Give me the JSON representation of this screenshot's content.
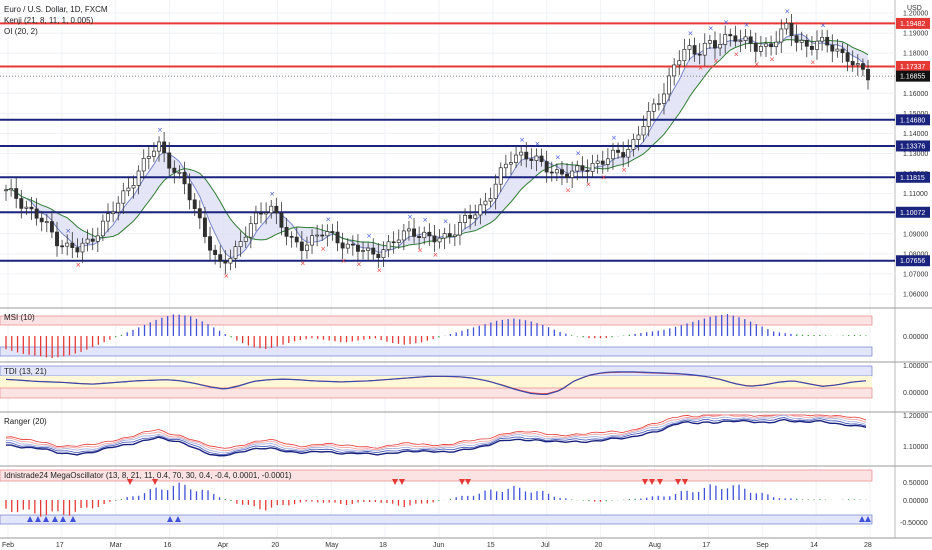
{
  "header": {
    "title": "Euro / U.S. Dollar, 1D, FXCM",
    "indicator1": "Kenji (21, 8, 11, 1, 0.005)",
    "indicator2": "OI (20, 2)",
    "currency": "USD"
  },
  "colors": {
    "bull": "#2e2e2e",
    "bear": "#2e2e2e",
    "level_red": "#e53935",
    "level_blue": "#1a237e",
    "hist_pos": "#3f51d8",
    "hist_neg": "#e53935",
    "hist_neu": "#43a047"
  },
  "panes": {
    "msi": "MSI (10)",
    "tdi": "TDI (13, 21)",
    "ranger": "Ranger (20)",
    "mega": "Idnistrade24 MegaOscillator (13, 8, 21, 11, 0.4, 70, 30, 0.4, -0.4, 0.0001, -0.0001)"
  },
  "chart_data": {
    "type": "candlestick",
    "symbol": "EURUSD",
    "timeframe": "1D",
    "price_axis": {
      "ylim": [
        1.055,
        1.2045
      ],
      "ticks": [
        "1.20000",
        "1.19000",
        "1.18000",
        "1.17000",
        "1.16000",
        "1.15000",
        "1.14000",
        "1.13000",
        "1.12000",
        "1.11000",
        "1.10000",
        "1.09000",
        "1.08000",
        "1.07000",
        "1.06000"
      ],
      "tick_values": [
        1.2,
        1.19,
        1.18,
        1.17,
        1.16,
        1.15,
        1.14,
        1.13,
        1.12,
        1.11,
        1.1,
        1.09,
        1.08,
        1.07,
        1.06
      ]
    },
    "levels": [
      {
        "value": 1.19482,
        "label": "1.19482",
        "color": "red"
      },
      {
        "value": 1.17337,
        "label": "1.17337",
        "color": "red"
      },
      {
        "value": 1.1468,
        "label": "1.14680",
        "color": "blue"
      },
      {
        "value": 1.13376,
        "label": "1.13376",
        "color": "blue"
      },
      {
        "value": 1.11815,
        "label": "1.11815",
        "color": "blue"
      },
      {
        "value": 1.10072,
        "label": "1.10072",
        "color": "blue"
      },
      {
        "value": 1.07656,
        "label": "1.07656",
        "color": "blue"
      }
    ],
    "last_price": {
      "value": 1.16855,
      "label": "1.16855"
    },
    "time_axis": [
      "Feb",
      "17",
      "Mar",
      "16",
      "Apr",
      "20",
      "May",
      "18",
      "Jun",
      "15",
      "Jul",
      "20",
      "Aug",
      "17",
      "Sep",
      "14",
      "28"
    ],
    "close_path": [
      1.1105,
      1.1085,
      1.1035,
      1.0985,
      1.0935,
      1.0875,
      1.0835,
      1.0815,
      1.0855,
      1.0915,
      1.0975,
      1.1045,
      1.1135,
      1.1205,
      1.1275,
      1.1355,
      1.1265,
      1.1185,
      1.1095,
      1.0985,
      1.0855,
      1.0725,
      1.0785,
      1.0855,
      1.0935,
      1.0985,
      1.1055,
      1.0965,
      1.0855,
      1.0835,
      1.0875,
      1.0905,
      1.0885,
      1.0865,
      1.0835,
      1.0815,
      1.0795,
      1.0825,
      1.0845,
      1.0885,
      1.0925,
      1.0895,
      1.0865,
      1.0875,
      1.0915,
      1.0955,
      1.0985,
      1.1045,
      1.1125,
      1.1215,
      1.1285,
      1.1305,
      1.1275,
      1.1225,
      1.1215,
      1.1205,
      1.1195,
      1.1225,
      1.1255,
      1.1265,
      1.1285,
      1.1315,
      1.1365,
      1.1455,
      1.1535,
      1.1635,
      1.1745,
      1.1815,
      1.1805,
      1.1855,
      1.1825,
      1.1875,
      1.1895,
      1.1855,
      1.1815,
      1.1835,
      1.1885,
      1.1925,
      1.1855,
      1.1845,
      1.1855,
      1.1835,
      1.1815,
      1.1785,
      1.1715,
      1.1685
    ],
    "msi_values": [
      -0.6,
      -0.8,
      -0.9,
      -1.0,
      -0.9,
      -0.7,
      -0.4,
      -0.1,
      0.2,
      0.5,
      0.8,
      1.0,
      0.9,
      0.6,
      0.2,
      -0.2,
      -0.5,
      -0.6,
      -0.4,
      -0.2,
      -0.1,
      -0.2,
      -0.3,
      -0.2,
      -0.1,
      -0.3,
      -0.4,
      -0.3,
      -0.1,
      0.1,
      0.3,
      0.5,
      0.7,
      0.8,
      0.7,
      0.5,
      0.2,
      0.0,
      -0.1,
      -0.1,
      0.0,
      0.1,
      0.2,
      0.3,
      0.5,
      0.7,
      0.9,
      1.0,
      0.8,
      0.5,
      0.2,
      0.1,
      0.05,
      0.05,
      0.0,
      0.05,
      0.03
    ],
    "tdi_values": [
      0.45,
      0.42,
      0.38,
      0.36,
      0.34,
      0.3,
      0.28,
      0.32,
      0.36,
      0.4,
      0.42,
      0.44,
      0.4,
      0.3,
      0.18,
      0.1,
      0.22,
      0.38,
      0.44,
      0.46,
      0.44,
      0.4,
      0.38,
      0.36,
      0.38,
      0.4,
      0.44,
      0.48,
      0.52,
      0.56,
      0.56,
      0.55,
      0.5,
      0.4,
      0.25,
      0.08,
      -0.05,
      -0.1,
      0.05,
      0.4,
      0.6,
      0.7,
      0.72,
      0.72,
      0.7,
      0.68,
      0.66,
      0.62,
      0.56,
      0.45,
      0.3,
      0.2,
      0.25,
      0.35,
      0.4,
      0.3,
      0.2,
      0.25,
      0.35,
      0.4
    ]
  }
}
